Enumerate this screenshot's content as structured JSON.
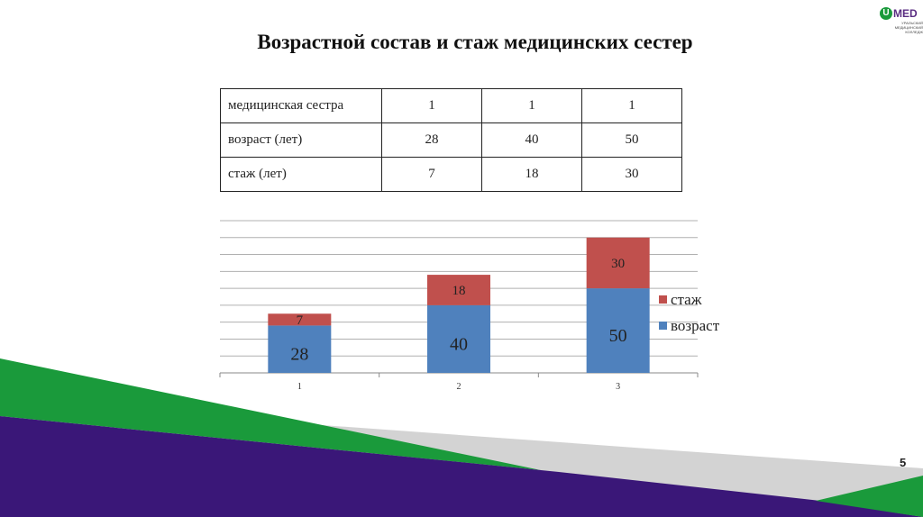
{
  "slide": {
    "title": "Возрастной состав и стаж медицинских сестер",
    "page_number": "5"
  },
  "logo": {
    "mark": "U",
    "name": "MED",
    "subtitle": "УРАЛЬСКИЙ МЕДИЦИНСКИЙ КОЛЛЕДЖ"
  },
  "table": {
    "rows": [
      {
        "label": "медицинская сестра",
        "values": [
          "1",
          "1",
          "1"
        ]
      },
      {
        "label": "возраст (лет)",
        "values": [
          "28",
          "40",
          "50"
        ]
      },
      {
        "label": "стаж (лет)",
        "values": [
          "7",
          "18",
          "30"
        ]
      }
    ]
  },
  "colors": {
    "age": "#4f81bd",
    "experience": "#c0504d",
    "green": "#1a9a3b",
    "purple": "#3a1778",
    "gray": "#d3d3d3"
  },
  "chart_data": {
    "type": "bar",
    "stacked": true,
    "categories": [
      "1",
      "2",
      "3"
    ],
    "series": [
      {
        "name": "возраст",
        "values": [
          28,
          40,
          50
        ]
      },
      {
        "name": "стаж",
        "values": [
          7,
          18,
          30
        ]
      }
    ],
    "ylim": [
      0,
      90
    ],
    "grid": true,
    "legend": "right",
    "title": "",
    "xlabel": "",
    "ylabel": ""
  }
}
